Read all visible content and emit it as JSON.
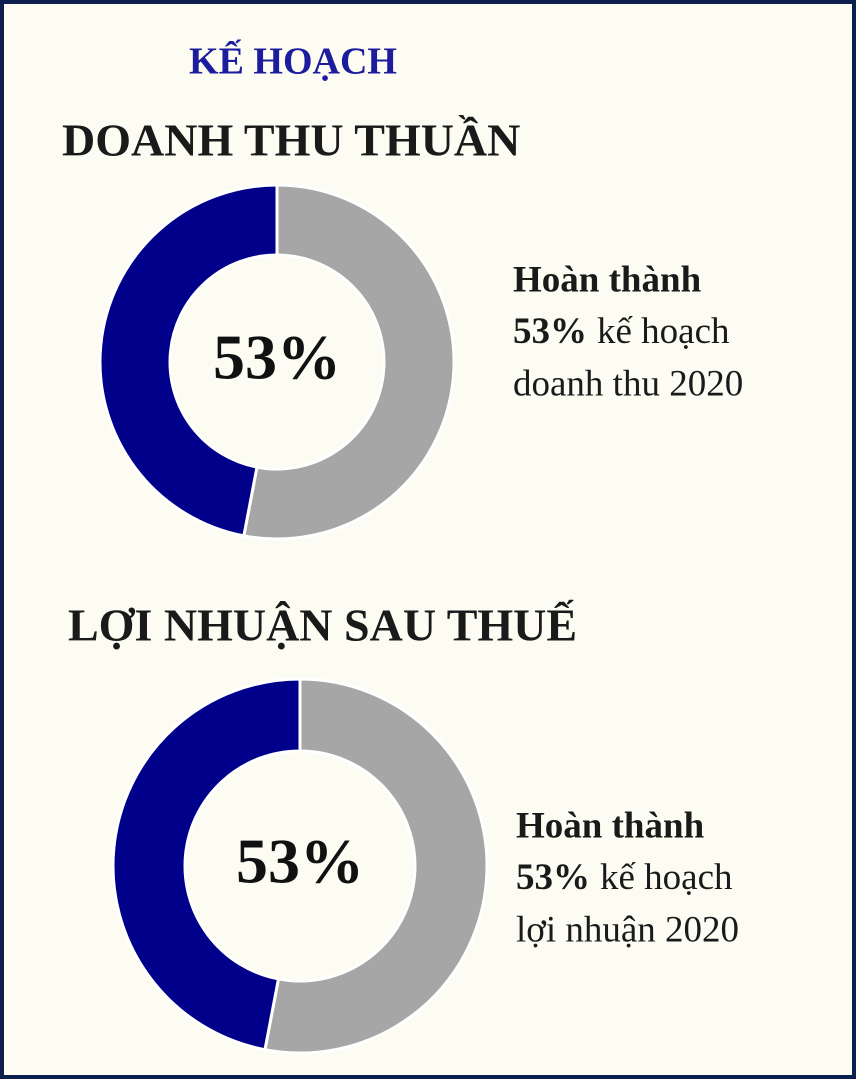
{
  "header": "KẾ HOẠCH",
  "chart_data": [
    {
      "type": "pie",
      "donut": true,
      "title": "DOANH THU THUẦN",
      "categories": [
        null,
        null
      ],
      "values": [
        53,
        47
      ],
      "colors": [
        "#a6a6a6",
        "#00008b"
      ],
      "value_labels": [
        "53%",
        null
      ],
      "note": [
        "Hoàn thành",
        "53%",
        "kế hoạch",
        "doanh thu 2020"
      ]
    },
    {
      "type": "pie",
      "donut": true,
      "title": "LỢI NHUẬN SAU THUẾ",
      "categories": [
        null,
        null
      ],
      "values": [
        53,
        47
      ],
      "colors": [
        "#a6a6a6",
        "#00008b"
      ],
      "value_labels": [
        "53%",
        null
      ],
      "note": [
        "Hoàn thành",
        "53%",
        "kế hoạch",
        "lợi nhuận 2020"
      ]
    }
  ]
}
